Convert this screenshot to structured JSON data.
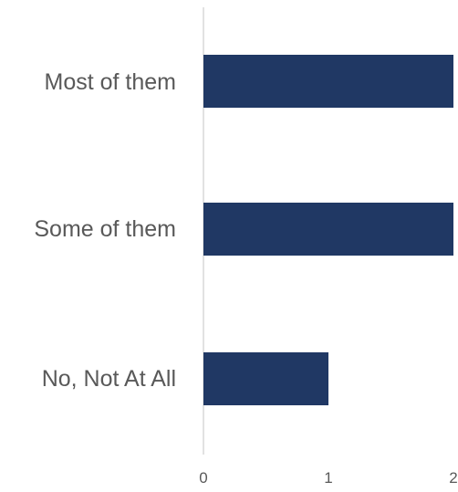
{
  "chart_data": {
    "type": "bar",
    "orientation": "horizontal",
    "categories": [
      "Most of them",
      "Some of them",
      "No, Not At All"
    ],
    "values": [
      2,
      2,
      1
    ],
    "xlim": [
      0,
      2
    ],
    "x_ticks": [
      "0",
      "1",
      "2"
    ],
    "bar_color": "#203864",
    "grid": false,
    "legend": "none"
  }
}
